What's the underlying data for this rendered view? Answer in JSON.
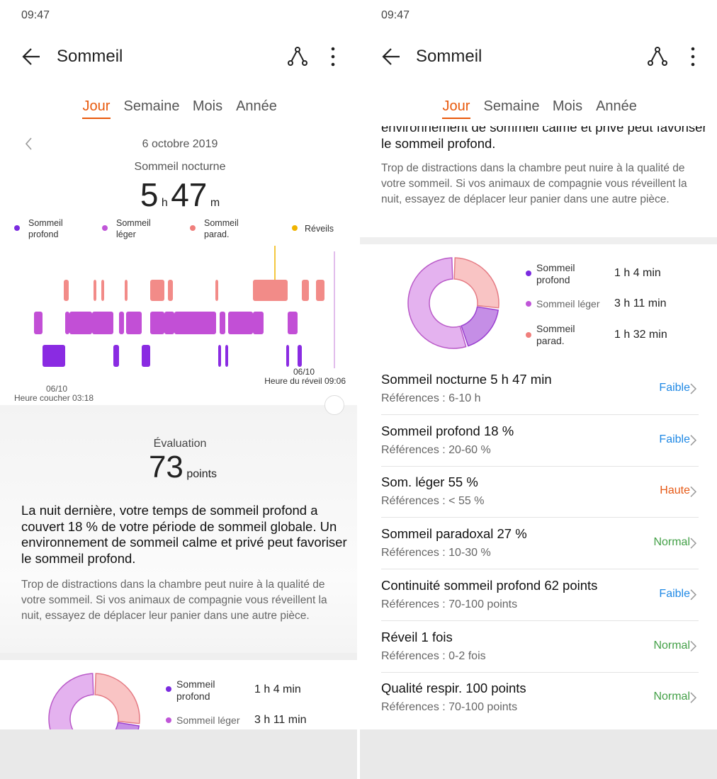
{
  "status_time": "09:47",
  "title": "Sommeil",
  "tabs": [
    "Jour",
    "Semaine",
    "Mois",
    "Année"
  ],
  "date": "6 octobre 2019",
  "section": "Sommeil nocturne",
  "duration": {
    "hours": 5,
    "hours_unit": "h",
    "minutes": 47,
    "minutes_unit": "m"
  },
  "legend": [
    "Sommeil profond",
    "Sommeil léger",
    "Sommeil parad.",
    "Réveils"
  ],
  "bedtime": {
    "date": "06/10",
    "label": "Heure coucher 03:18"
  },
  "wake": {
    "date": "06/10",
    "label": "Heure du réveil 09:06"
  },
  "evaluation": {
    "label": "Évaluation",
    "score": 73,
    "unit": "points"
  },
  "summary": "La nuit dernière, votre temps de sommeil profond a couvert 18 % de votre période de sommeil globale. Un environnement de sommeil calme et privé peut favoriser le sommeil profond.",
  "advice": "Trop de distractions dans la chambre peut nuire à la qualité de votre sommeil. Si vos animaux de compagnie vous réveillent la nuit, essayez de déplacer leur panier dans une autre pièce.",
  "breakdown": [
    {
      "label": "Sommeil profond",
      "value": "1 h 4 min"
    },
    {
      "label": "Sommeil léger",
      "value": "3 h 11 min"
    },
    {
      "label": "Sommeil parad.",
      "value": "1 h 32 min"
    }
  ],
  "metrics": [
    {
      "name": "Sommeil nocturne  5 h 47 min",
      "reference": "Références : 6-10 h",
      "status": "Faible",
      "status_color": "#1e88e5"
    },
    {
      "name": "Sommeil profond  18 %",
      "reference": "Références : 20-60 %",
      "status": "Faible",
      "status_color": "#1e88e5"
    },
    {
      "name": "Som. léger  55 %",
      "reference": "Références : < 55 %",
      "status": "Haute",
      "status_color": "#e65a17"
    },
    {
      "name": "Sommeil paradoxal  27 %",
      "reference": "Références : 10-30 %",
      "status": "Normal",
      "status_color": "#43a047"
    },
    {
      "name": "Continuité sommeil profond  62 points",
      "reference": "Références : 70-100 points",
      "status": "Faible",
      "status_color": "#1e88e5"
    },
    {
      "name": "Réveil  1 fois",
      "reference": "Références : 0-2 fois",
      "status": "Normal",
      "status_color": "#43a047"
    },
    {
      "name": "Qualité respir.  100 points",
      "reference": "Références : 70-100 points",
      "status": "Normal",
      "status_color": "#43a047"
    }
  ]
}
